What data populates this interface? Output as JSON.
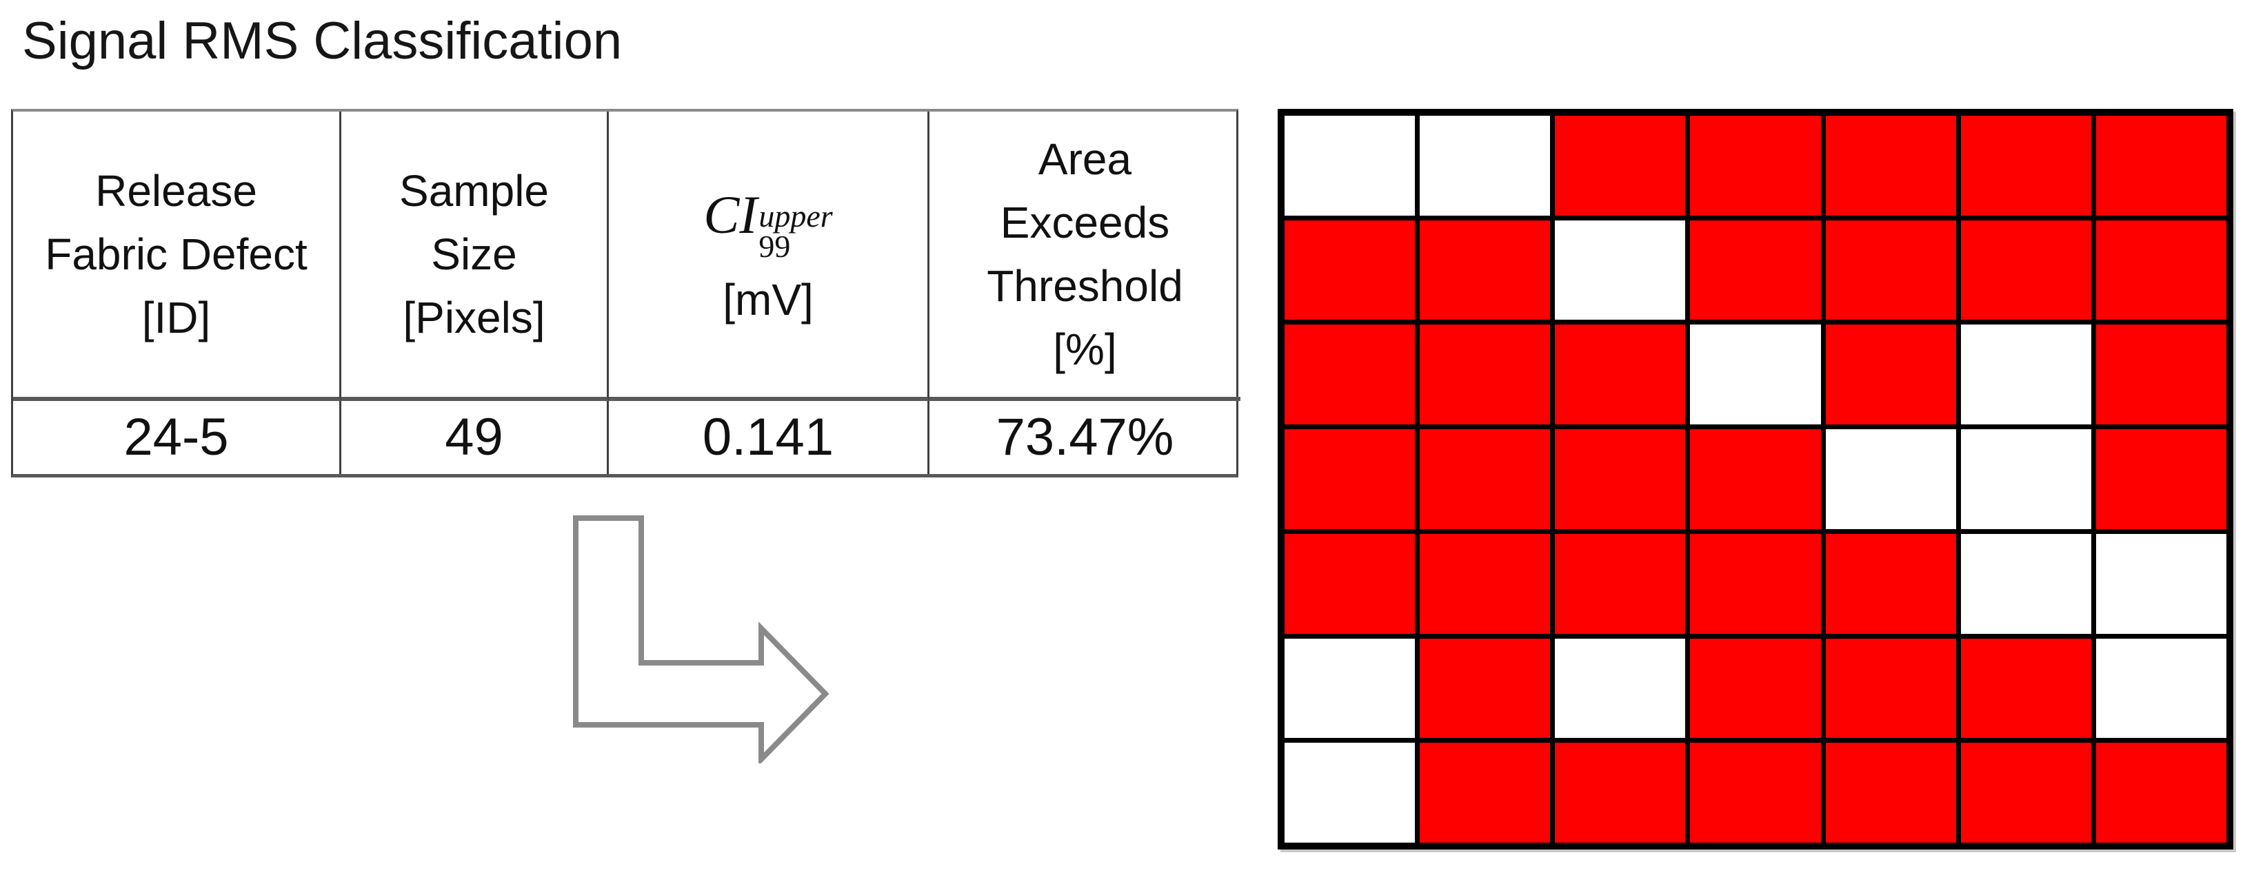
{
  "title": "Signal RMS Classification",
  "table": {
    "headers": [
      {
        "lines": [
          "Release",
          "Fabric Defect",
          "[ID]"
        ]
      },
      {
        "lines": [
          "Sample",
          "Size",
          "[Pixels]"
        ]
      },
      {
        "math": {
          "base": "CI",
          "sup": "upper",
          "sub": "99"
        },
        "lines": [
          "[mV]"
        ]
      },
      {
        "lines": [
          "Area",
          "Exceeds",
          "Threshold",
          "[%]"
        ]
      }
    ],
    "row": [
      "24-5",
      "49",
      "0.141",
      "73.47%"
    ]
  },
  "arrow": {
    "shape": "bent-elbow-arrow-down-then-right",
    "stroke_color": "#8a8a8a",
    "fill_color": "#ffffff"
  },
  "chart_data": {
    "type": "heatmap",
    "title": "Signal RMS Classification",
    "rows": 7,
    "cols": 7,
    "values": [
      [
        0,
        0,
        1,
        1,
        1,
        1,
        1
      ],
      [
        1,
        1,
        0,
        1,
        1,
        1,
        1
      ],
      [
        1,
        1,
        1,
        0,
        1,
        0,
        1
      ],
      [
        1,
        1,
        1,
        1,
        0,
        0,
        1
      ],
      [
        1,
        1,
        1,
        1,
        1,
        0,
        0
      ],
      [
        0,
        1,
        0,
        1,
        1,
        1,
        0
      ],
      [
        0,
        1,
        1,
        1,
        1,
        1,
        1
      ]
    ],
    "value_meaning": {
      "on": "pixel exceeds threshold",
      "off": "pixel below threshold"
    },
    "colors": {
      "on": "#ff0000",
      "off": "#ffffff",
      "grid_lines": "#000000"
    },
    "cells_on": 36,
    "total_cells": 49,
    "fraction_on": "73.47%",
    "grid_lines": "on",
    "legend_position": "none"
  }
}
